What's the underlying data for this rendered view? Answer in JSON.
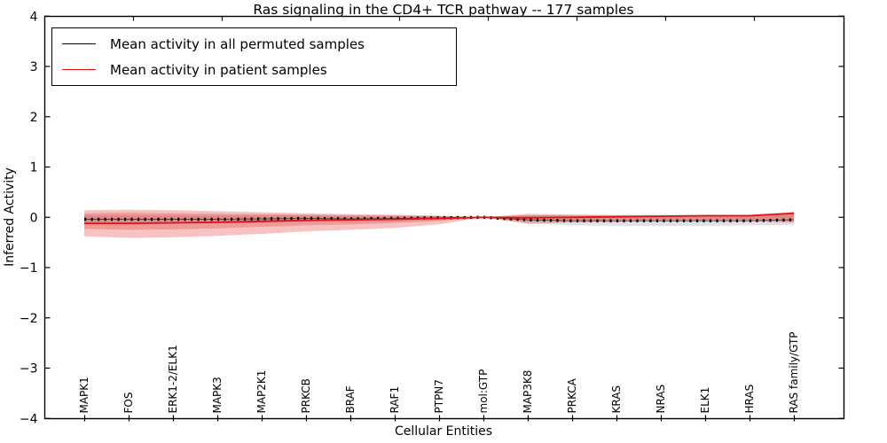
{
  "chart_data": {
    "type": "line",
    "title": "Ras signaling in the CD4+ TCR pathway -- 177 samples",
    "xlabel": "Cellular Entities",
    "ylabel": "Inferred Activity",
    "ylim": [
      -4,
      4
    ],
    "ytick_values": [
      4,
      3,
      2,
      1,
      0,
      -1,
      -2,
      -3,
      -4
    ],
    "ytick_labels": [
      "4",
      "3",
      "2",
      "1",
      "0",
      "−1",
      "−2",
      "−3",
      "−4"
    ],
    "grid": false,
    "legend_position": "upper left",
    "categories": [
      "MAPK1",
      "FOS",
      "ERK1-2/ELK1",
      "MAPK3",
      "MAP2K1",
      "PRKCB",
      "BRAF",
      "RAF1",
      "PTPN7",
      "mol:GTP",
      "MAP3K8",
      "PRKCA",
      "KRAS",
      "NRAS",
      "ELK1",
      "HRAS",
      "RAS family/GTP"
    ],
    "series": [
      {
        "name": "Mean activity in all permuted samples",
        "color": "#000000",
        "style": "line-with-square-markers",
        "values": [
          -0.04,
          -0.04,
          -0.04,
          -0.04,
          -0.03,
          -0.02,
          -0.03,
          -0.02,
          -0.01,
          0.0,
          -0.05,
          -0.07,
          -0.07,
          -0.07,
          -0.07,
          -0.07,
          -0.05
        ]
      },
      {
        "name": "Mean activity in patient samples",
        "color": "#e01212",
        "style": "line",
        "values": [
          -0.12,
          -0.12,
          -0.11,
          -0.1,
          -0.08,
          -0.06,
          -0.05,
          -0.04,
          -0.02,
          0.0,
          -0.01,
          0.0,
          0.01,
          0.02,
          0.03,
          0.03,
          0.08
        ]
      }
    ],
    "bands": [
      {
        "name": "permuted-samples-band",
        "color": "rgba(80,80,80,0.17)",
        "upper": [
          0.04,
          0.04,
          0.04,
          0.04,
          0.04,
          0.04,
          0.03,
          0.03,
          0.03,
          0.01,
          0.04,
          0.05,
          0.05,
          0.05,
          0.05,
          0.05,
          0.06
        ],
        "lower": [
          -0.12,
          -0.12,
          -0.12,
          -0.12,
          -0.11,
          -0.09,
          -0.09,
          -0.08,
          -0.06,
          -0.01,
          -0.12,
          -0.16,
          -0.17,
          -0.17,
          -0.17,
          -0.16,
          -0.15
        ]
      },
      {
        "name": "patient-band-outer",
        "color": "rgba(220,30,30,0.27)",
        "upper": [
          0.14,
          0.15,
          0.14,
          0.12,
          0.1,
          0.08,
          0.06,
          0.05,
          0.03,
          0.0,
          0.07,
          0.05,
          0.04,
          0.04,
          0.04,
          0.05,
          0.11
        ],
        "lower": [
          -0.38,
          -0.41,
          -0.4,
          -0.37,
          -0.33,
          -0.28,
          -0.25,
          -0.21,
          -0.14,
          0.0,
          -0.13,
          -0.1,
          -0.09,
          -0.08,
          -0.08,
          -0.08,
          -0.11
        ]
      },
      {
        "name": "patient-band-inner",
        "color": "rgba(220,30,30,0.25)",
        "upper": [
          0.08,
          0.09,
          0.08,
          0.07,
          0.06,
          0.05,
          0.04,
          0.03,
          0.02,
          0.0,
          0.04,
          0.03,
          0.03,
          0.03,
          0.03,
          0.03,
          0.07
        ],
        "lower": [
          -0.23,
          -0.25,
          -0.24,
          -0.22,
          -0.19,
          -0.16,
          -0.14,
          -0.11,
          -0.07,
          0.0,
          -0.08,
          -0.06,
          -0.05,
          -0.05,
          -0.05,
          -0.05,
          -0.07
        ]
      }
    ],
    "colors": {
      "spine": "#000000",
      "permuted_line": "#000000",
      "patient_line": "#e01212",
      "band_red": "#f2b0b0",
      "band_gray": "#dedede"
    }
  }
}
